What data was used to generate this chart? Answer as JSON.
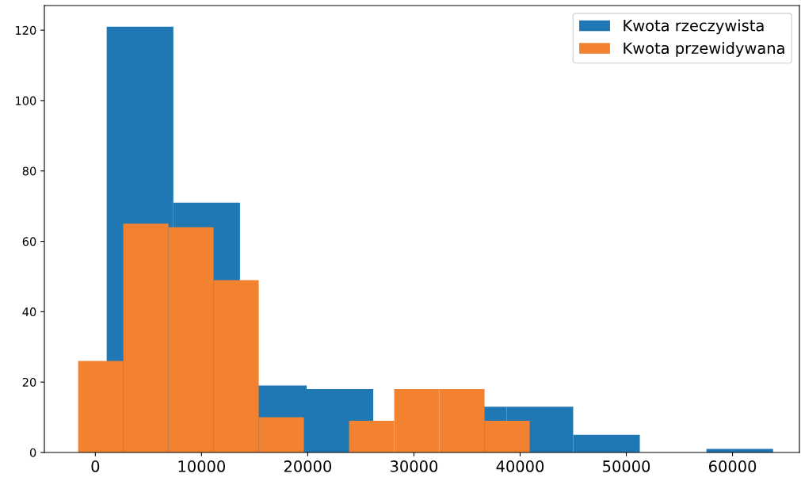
{
  "chart_data": {
    "type": "bar",
    "xlim": [
      -4800,
      66300
    ],
    "ylim": [
      0,
      127
    ],
    "xticks": [
      0,
      10000,
      20000,
      30000,
      40000,
      50000,
      60000
    ],
    "yticks": [
      0,
      20,
      40,
      60,
      80,
      100,
      120
    ],
    "series": [
      {
        "name": "Kwota rzeczywista",
        "color": "#1f77b4",
        "x": [
          4208,
          10483,
          16758,
          23033,
          29308,
          35583,
          41858,
          48133,
          54408,
          60683
        ],
        "values": [
          121,
          71,
          19,
          18,
          null,
          13,
          13,
          5,
          0,
          1
        ]
      },
      {
        "name": "Kwota przewidywana",
        "color": "#f28230",
        "x": [
          506,
          4758,
          9010,
          13262,
          17514,
          21766,
          26018,
          30270,
          34522,
          38774
        ],
        "values": [
          26,
          65,
          64,
          49,
          10,
          0,
          9,
          18,
          18,
          9
        ]
      }
    ],
    "legend": "top right",
    "grid": false
  }
}
